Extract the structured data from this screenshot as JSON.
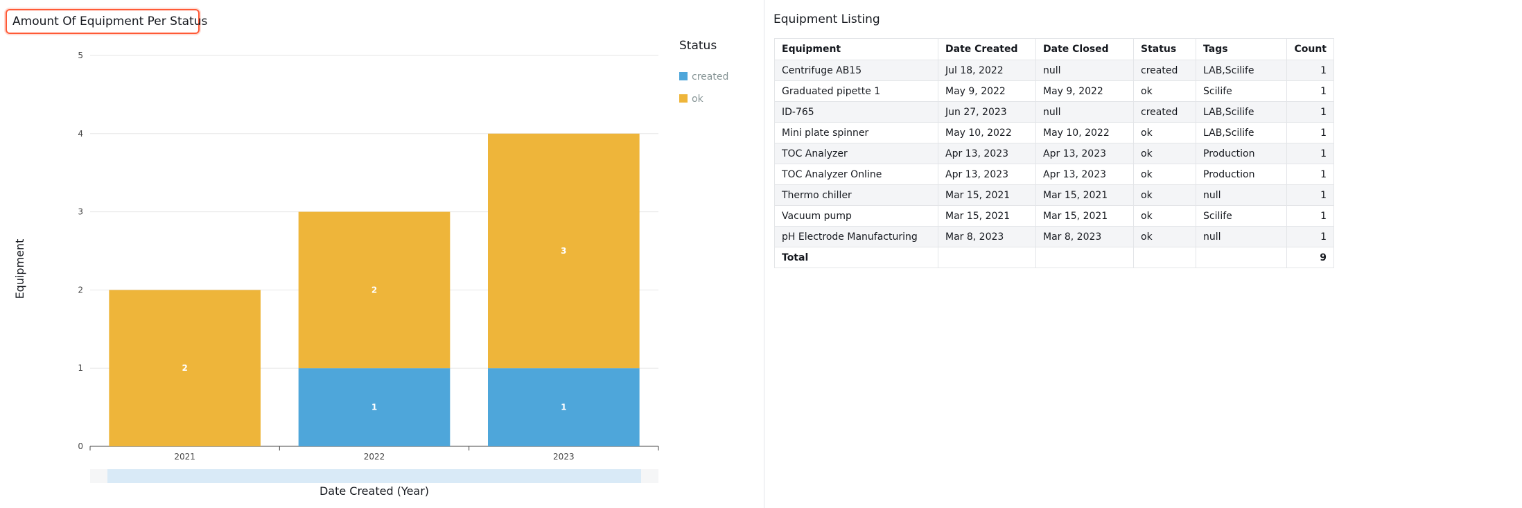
{
  "chart_title": "Amount Of Equipment Per Status",
  "chart_data": {
    "type": "bar",
    "stacked": true,
    "categories": [
      "2021",
      "2022",
      "2023"
    ],
    "series": [
      {
        "name": "created",
        "values": [
          0,
          1,
          1
        ],
        "color": "#4ea6da"
      },
      {
        "name": "ok",
        "values": [
          2,
          2,
          3
        ],
        "color": "#eeb53a"
      }
    ],
    "xlabel": "Date Created (Year)",
    "ylabel": "Equipment",
    "ylim": [
      0,
      5
    ],
    "yticks": [
      0,
      1,
      2,
      3,
      4,
      5
    ],
    "grid": true,
    "legend": {
      "title": "Status",
      "placement": "right",
      "items": [
        "created",
        "ok"
      ]
    }
  },
  "table": {
    "title": "Equipment Listing",
    "columns": [
      "Equipment",
      "Date Created",
      "Date Closed",
      "Status",
      "Tags",
      "Count"
    ],
    "rows": [
      [
        "Centrifuge AB15",
        "Jul 18, 2022",
        "null",
        "created",
        "LAB,Scilife",
        "1"
      ],
      [
        "Graduated pipette 1",
        "May 9, 2022",
        "May 9, 2022",
        "ok",
        "Scilife",
        "1"
      ],
      [
        "ID-765",
        "Jun 27, 2023",
        "null",
        "created",
        "LAB,Scilife",
        "1"
      ],
      [
        "Mini plate spinner",
        "May 10, 2022",
        "May 10, 2022",
        "ok",
        "LAB,Scilife",
        "1"
      ],
      [
        "TOC Analyzer",
        "Apr 13, 2023",
        "Apr 13, 2023",
        "ok",
        "Production",
        "1"
      ],
      [
        "TOC Analyzer Online",
        "Apr 13, 2023",
        "Apr 13, 2023",
        "ok",
        "Production",
        "1"
      ],
      [
        "Thermo chiller",
        "Mar 15, 2021",
        "Mar 15, 2021",
        "ok",
        "null",
        "1"
      ],
      [
        "Vacuum pump",
        "Mar 15, 2021",
        "Mar 15, 2021",
        "ok",
        "Scilife",
        "1"
      ],
      [
        "pH Electrode Manufacturing",
        "Mar 8, 2023",
        "Mar 8, 2023",
        "ok",
        "null",
        "1"
      ]
    ],
    "total_label": "Total",
    "total_value": "9"
  }
}
